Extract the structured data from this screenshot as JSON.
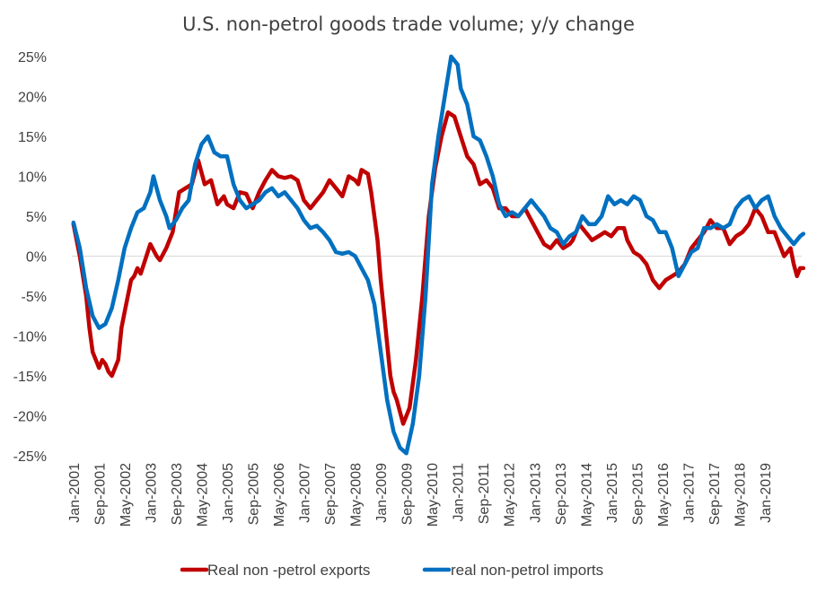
{
  "chart_data": {
    "type": "line",
    "title": "U.S. non-petrol goods trade volume; y/y change",
    "xlabel": "",
    "ylabel": "",
    "ylim": [
      -25,
      25
    ],
    "y_ticks": [
      "25%",
      "20%",
      "15%",
      "10%",
      "5%",
      "0%",
      "-5%",
      "-10%",
      "-15%",
      "-20%",
      "-25%"
    ],
    "x_range": [
      "2001-01",
      "2019-12"
    ],
    "x_ticks": [
      "Jan-2001",
      "Sep-2001",
      "May-2002",
      "Jan-2003",
      "Sep-2003",
      "May-2004",
      "Jan-2005",
      "Sep-2005",
      "May-2006",
      "Jan-2007",
      "Sep-2007",
      "May-2008",
      "Jan-2009",
      "Sep-2009",
      "May-2010",
      "Jan-2011",
      "Sep-2011",
      "May-2012",
      "Jan-2013",
      "Sep-2013",
      "May-2014",
      "Jan-2015",
      "Sep-2015",
      "May-2016",
      "Jan-2017",
      "Sep-2017",
      "May-2018",
      "Jan-2019"
    ],
    "grid": false,
    "legend_position": "bottom",
    "series": [
      {
        "name": "Real non -petrol exports",
        "color": "#c00000",
        "points": [
          [
            "2001-01",
            4
          ],
          [
            "2001-03",
            0
          ],
          [
            "2001-05",
            -5
          ],
          [
            "2001-06",
            -9
          ],
          [
            "2001-07",
            -12
          ],
          [
            "2001-09",
            -14
          ],
          [
            "2001-10",
            -13
          ],
          [
            "2001-11",
            -13.5
          ],
          [
            "2001-12",
            -14.5
          ],
          [
            "2002-01",
            -15
          ],
          [
            "2002-03",
            -13
          ],
          [
            "2002-04",
            -9
          ],
          [
            "2002-05",
            -7
          ],
          [
            "2002-07",
            -3
          ],
          [
            "2002-08",
            -2.5
          ],
          [
            "2002-09",
            -1.5
          ],
          [
            "2002-10",
            -2.2
          ],
          [
            "2002-11",
            -1
          ],
          [
            "2003-01",
            1.5
          ],
          [
            "2003-03",
            0
          ],
          [
            "2003-04",
            -0.5
          ],
          [
            "2003-06",
            1
          ],
          [
            "2003-08",
            3
          ],
          [
            "2003-10",
            8
          ],
          [
            "2003-12",
            8.5
          ],
          [
            "2004-02",
            9
          ],
          [
            "2004-04",
            12
          ],
          [
            "2004-06",
            9
          ],
          [
            "2004-08",
            9.5
          ],
          [
            "2004-10",
            6.5
          ],
          [
            "2004-12",
            7.5
          ],
          [
            "2005-01",
            6.5
          ],
          [
            "2005-03",
            6
          ],
          [
            "2005-05",
            8
          ],
          [
            "2005-07",
            7.8
          ],
          [
            "2005-09",
            6
          ],
          [
            "2005-11",
            8
          ],
          [
            "2006-01",
            9.5
          ],
          [
            "2006-03",
            10.8
          ],
          [
            "2006-05",
            10
          ],
          [
            "2006-07",
            9.8
          ],
          [
            "2006-09",
            10
          ],
          [
            "2006-11",
            9.5
          ],
          [
            "2007-01",
            7
          ],
          [
            "2007-03",
            6
          ],
          [
            "2007-05",
            7
          ],
          [
            "2007-07",
            8
          ],
          [
            "2007-09",
            9.5
          ],
          [
            "2007-11",
            8.5
          ],
          [
            "2008-01",
            7.5
          ],
          [
            "2008-03",
            10
          ],
          [
            "2008-05",
            9.5
          ],
          [
            "2008-06",
            9
          ],
          [
            "2008-07",
            10.8
          ],
          [
            "2008-09",
            10.3
          ],
          [
            "2008-10",
            8
          ],
          [
            "2008-11",
            5
          ],
          [
            "2008-12",
            2
          ],
          [
            "2009-01",
            -3
          ],
          [
            "2009-02",
            -7
          ],
          [
            "2009-03",
            -11
          ],
          [
            "2009-04",
            -15
          ],
          [
            "2009-05",
            -17
          ],
          [
            "2009-06",
            -18
          ],
          [
            "2009-08",
            -21
          ],
          [
            "2009-10",
            -19
          ],
          [
            "2009-12",
            -13
          ],
          [
            "2010-02",
            -5
          ],
          [
            "2010-04",
            5
          ],
          [
            "2010-06",
            11
          ],
          [
            "2010-08",
            15
          ],
          [
            "2010-10",
            18
          ],
          [
            "2010-12",
            17.5
          ],
          [
            "2011-02",
            15
          ],
          [
            "2011-04",
            12.5
          ],
          [
            "2011-06",
            11.5
          ],
          [
            "2011-08",
            9
          ],
          [
            "2011-10",
            9.5
          ],
          [
            "2011-12",
            8.5
          ],
          [
            "2012-02",
            6
          ],
          [
            "2012-04",
            6
          ],
          [
            "2012-06",
            5
          ],
          [
            "2012-08",
            5
          ],
          [
            "2012-10",
            6
          ],
          [
            "2012-12",
            4.5
          ],
          [
            "2013-02",
            3
          ],
          [
            "2013-04",
            1.5
          ],
          [
            "2013-06",
            1
          ],
          [
            "2013-08",
            2
          ],
          [
            "2013-10",
            1
          ],
          [
            "2013-12",
            1.5
          ],
          [
            "2014-01",
            2
          ],
          [
            "2014-03",
            4
          ],
          [
            "2014-05",
            3
          ],
          [
            "2014-07",
            2
          ],
          [
            "2014-09",
            2.5
          ],
          [
            "2014-11",
            3
          ],
          [
            "2015-01",
            2.5
          ],
          [
            "2015-03",
            3.5
          ],
          [
            "2015-05",
            3.5
          ],
          [
            "2015-06",
            2
          ],
          [
            "2015-08",
            0.5
          ],
          [
            "2015-10",
            0
          ],
          [
            "2015-12",
            -1
          ],
          [
            "2016-02",
            -3
          ],
          [
            "2016-04",
            -4
          ],
          [
            "2016-06",
            -3
          ],
          [
            "2016-08",
            -2.5
          ],
          [
            "2016-10",
            -2
          ],
          [
            "2016-12",
            -1
          ],
          [
            "2017-02",
            1
          ],
          [
            "2017-04",
            2
          ],
          [
            "2017-06",
            3
          ],
          [
            "2017-08",
            4.5
          ],
          [
            "2017-10",
            3.5
          ],
          [
            "2017-12",
            3.5
          ],
          [
            "2018-02",
            1.5
          ],
          [
            "2018-04",
            2.5
          ],
          [
            "2018-06",
            3
          ],
          [
            "2018-08",
            4
          ],
          [
            "2018-10",
            6
          ],
          [
            "2018-12",
            5
          ],
          [
            "2019-02",
            3
          ],
          [
            "2019-04",
            3
          ],
          [
            "2019-06",
            1
          ],
          [
            "2019-07",
            0
          ],
          [
            "2019-09",
            1
          ],
          [
            "2019-10",
            -1
          ],
          [
            "2019-11",
            -2.5
          ],
          [
            "2019-12",
            -1.5
          ],
          [
            "2020-01",
            -1.5
          ]
        ]
      },
      {
        "name": "real non-petrol imports",
        "color": "#0070c0",
        "points": [
          [
            "2001-01",
            4.2
          ],
          [
            "2001-03",
            1
          ],
          [
            "2001-05",
            -4
          ],
          [
            "2001-07",
            -7.5
          ],
          [
            "2001-09",
            -9
          ],
          [
            "2001-11",
            -8.5
          ],
          [
            "2002-01",
            -6.5
          ],
          [
            "2002-03",
            -3
          ],
          [
            "2002-05",
            1
          ],
          [
            "2002-07",
            3.5
          ],
          [
            "2002-09",
            5.5
          ],
          [
            "2002-11",
            6
          ],
          [
            "2003-01",
            8
          ],
          [
            "2003-02",
            10
          ],
          [
            "2003-04",
            7
          ],
          [
            "2003-06",
            5
          ],
          [
            "2003-07",
            3.5
          ],
          [
            "2003-09",
            4.5
          ],
          [
            "2003-11",
            6
          ],
          [
            "2004-01",
            7
          ],
          [
            "2004-03",
            11.5
          ],
          [
            "2004-05",
            14
          ],
          [
            "2004-07",
            15
          ],
          [
            "2004-09",
            13
          ],
          [
            "2004-11",
            12.5
          ],
          [
            "2005-01",
            12.5
          ],
          [
            "2005-03",
            9
          ],
          [
            "2005-05",
            7
          ],
          [
            "2005-07",
            6
          ],
          [
            "2005-09",
            6.5
          ],
          [
            "2005-11",
            7
          ],
          [
            "2006-01",
            8
          ],
          [
            "2006-03",
            8.5
          ],
          [
            "2006-05",
            7.5
          ],
          [
            "2006-07",
            8
          ],
          [
            "2006-09",
            7
          ],
          [
            "2006-11",
            6
          ],
          [
            "2007-01",
            4.5
          ],
          [
            "2007-03",
            3.5
          ],
          [
            "2007-05",
            3.8
          ],
          [
            "2007-07",
            3
          ],
          [
            "2007-09",
            2
          ],
          [
            "2007-11",
            0.5
          ],
          [
            "2008-01",
            0.3
          ],
          [
            "2008-03",
            0.5
          ],
          [
            "2008-05",
            0
          ],
          [
            "2008-07",
            -1.5
          ],
          [
            "2008-09",
            -3
          ],
          [
            "2008-11",
            -6
          ],
          [
            "2009-01",
            -12
          ],
          [
            "2009-03",
            -18
          ],
          [
            "2009-05",
            -22
          ],
          [
            "2009-07",
            -24
          ],
          [
            "2009-09",
            -24.7
          ],
          [
            "2009-11",
            -21
          ],
          [
            "2010-01",
            -15
          ],
          [
            "2010-03",
            -5
          ],
          [
            "2010-05",
            9
          ],
          [
            "2010-07",
            15
          ],
          [
            "2010-09",
            20
          ],
          [
            "2010-11",
            25
          ],
          [
            "2011-01",
            24
          ],
          [
            "2011-02",
            21
          ],
          [
            "2011-04",
            19
          ],
          [
            "2011-06",
            15
          ],
          [
            "2011-08",
            14.5
          ],
          [
            "2011-10",
            12.5
          ],
          [
            "2011-12",
            10
          ],
          [
            "2012-02",
            6.5
          ],
          [
            "2012-04",
            5
          ],
          [
            "2012-06",
            5.5
          ],
          [
            "2012-08",
            5
          ],
          [
            "2012-10",
            6
          ],
          [
            "2012-12",
            7
          ],
          [
            "2013-02",
            6
          ],
          [
            "2013-04",
            5
          ],
          [
            "2013-06",
            3.5
          ],
          [
            "2013-08",
            3
          ],
          [
            "2013-10",
            1.5
          ],
          [
            "2013-12",
            2.5
          ],
          [
            "2014-02",
            3
          ],
          [
            "2014-04",
            5
          ],
          [
            "2014-06",
            4
          ],
          [
            "2014-08",
            4
          ],
          [
            "2014-10",
            5
          ],
          [
            "2014-12",
            7.5
          ],
          [
            "2015-02",
            6.5
          ],
          [
            "2015-04",
            7
          ],
          [
            "2015-06",
            6.5
          ],
          [
            "2015-08",
            7.5
          ],
          [
            "2015-10",
            7
          ],
          [
            "2015-12",
            5
          ],
          [
            "2016-02",
            4.5
          ],
          [
            "2016-04",
            3
          ],
          [
            "2016-06",
            3
          ],
          [
            "2016-08",
            1
          ],
          [
            "2016-10",
            -2.5
          ],
          [
            "2016-12",
            -1
          ],
          [
            "2017-02",
            0.5
          ],
          [
            "2017-04",
            1
          ],
          [
            "2017-06",
            3.5
          ],
          [
            "2017-08",
            3.5
          ],
          [
            "2017-10",
            4
          ],
          [
            "2017-12",
            3.5
          ],
          [
            "2018-02",
            4
          ],
          [
            "2018-04",
            6
          ],
          [
            "2018-06",
            7
          ],
          [
            "2018-08",
            7.5
          ],
          [
            "2018-10",
            6
          ],
          [
            "2018-12",
            7
          ],
          [
            "2019-02",
            7.5
          ],
          [
            "2019-04",
            5
          ],
          [
            "2019-06",
            3.5
          ],
          [
            "2019-08",
            2.5
          ],
          [
            "2019-10",
            1.5
          ],
          [
            "2019-12",
            2.5
          ],
          [
            "2020-01",
            2.8
          ]
        ]
      }
    ]
  }
}
